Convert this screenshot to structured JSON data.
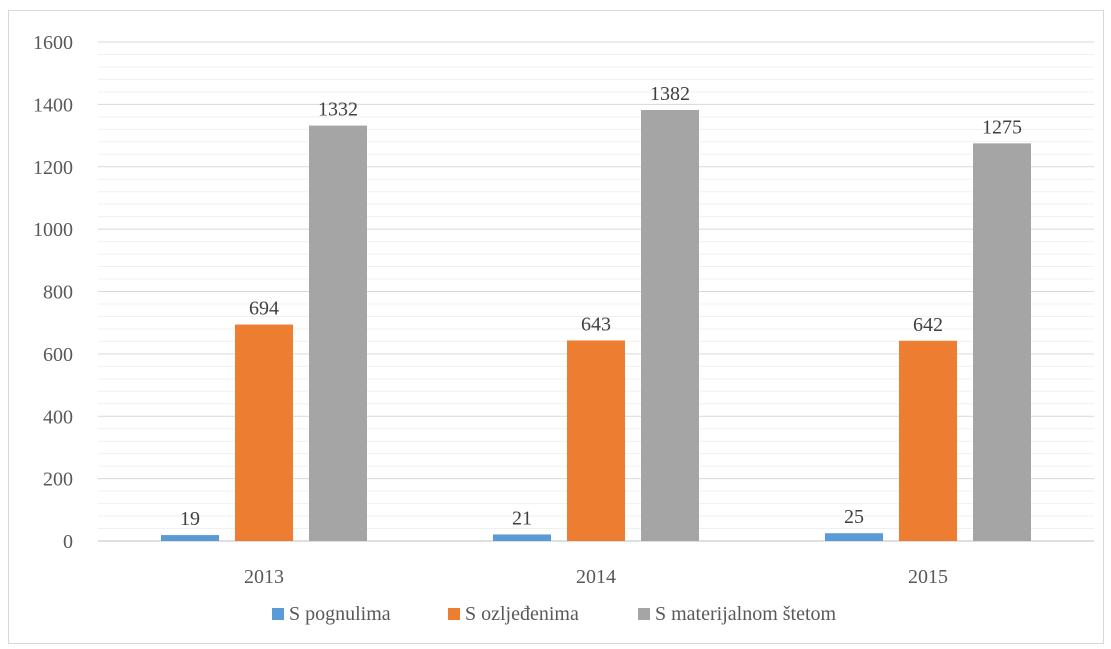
{
  "chart_data": {
    "type": "bar",
    "title": "",
    "xlabel": "",
    "ylabel": "",
    "categories": [
      "2013",
      "2014",
      "2015"
    ],
    "series": [
      {
        "name": "S pognulima",
        "values": [
          19,
          21,
          25
        ],
        "color": "#5b9bd5"
      },
      {
        "name": "S ozljeđenima",
        "values": [
          694,
          643,
          642
        ],
        "color": "#ed7d31"
      },
      {
        "name": "S materijalnom štetom",
        "values": [
          1332,
          1382,
          1275
        ],
        "color": "#a5a5a5"
      }
    ],
    "ylim": [
      0,
      1600
    ],
    "yticks": [
      "0",
      "200",
      "400",
      "600",
      "800",
      "1000",
      "1200",
      "1400",
      "1600"
    ],
    "grid": true,
    "data_labels": true,
    "legend_position": "bottom"
  }
}
